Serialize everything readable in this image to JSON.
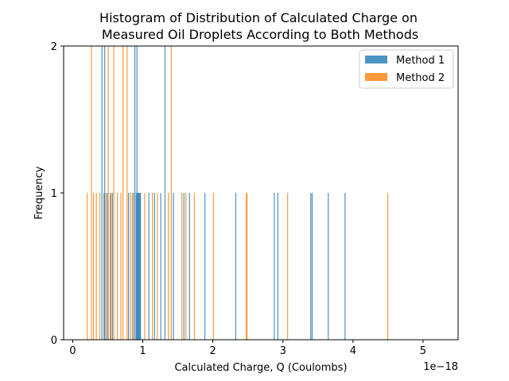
{
  "chart_data": {
    "type": "histogram",
    "title_lines": [
      "Histogram of Distribution of Calculated Charge on",
      "Measured Oil Droplets According to Both Methods"
    ],
    "xlabel": "Calculated Charge, Q (Coulombs)",
    "ylabel": "Frequency",
    "x_offset_text": "1e−18",
    "x_scale": 1e-18,
    "xlim": [
      -0.13,
      5.5
    ],
    "ylim": [
      0,
      2
    ],
    "xticks": [
      0,
      1,
      2,
      3,
      4,
      5
    ],
    "xtick_labels": [
      "0",
      "1",
      "2",
      "3",
      "4",
      "5"
    ],
    "yticks": [
      0,
      1,
      2
    ],
    "ytick_labels": [
      "0",
      "1",
      "2"
    ],
    "bin_width": 0.012,
    "grid": false,
    "legend_position": "top-right",
    "series": [
      {
        "name": "Method 1",
        "color": "#1f77b4",
        "opacity": 0.8,
        "bars": [
          {
            "x": 0.41,
            "count": 2
          },
          {
            "x": 0.45,
            "count": 2
          },
          {
            "x": 0.88,
            "count": 2
          },
          {
            "x": 0.91,
            "count": 2
          },
          {
            "x": 1.31,
            "count": 2
          },
          {
            "x": 0.44,
            "count": 1
          },
          {
            "x": 0.49,
            "count": 1
          },
          {
            "x": 0.53,
            "count": 1
          },
          {
            "x": 0.56,
            "count": 1
          },
          {
            "x": 0.79,
            "count": 1
          },
          {
            "x": 0.85,
            "count": 1
          },
          {
            "x": 0.9,
            "count": 1
          },
          {
            "x": 0.92,
            "count": 1
          },
          {
            "x": 0.93,
            "count": 1
          },
          {
            "x": 0.94,
            "count": 1
          },
          {
            "x": 0.95,
            "count": 1
          },
          {
            "x": 0.96,
            "count": 1
          },
          {
            "x": 1.08,
            "count": 1
          },
          {
            "x": 1.16,
            "count": 1
          },
          {
            "x": 1.25,
            "count": 1
          },
          {
            "x": 1.43,
            "count": 1
          },
          {
            "x": 1.58,
            "count": 1
          },
          {
            "x": 1.66,
            "count": 1
          },
          {
            "x": 1.88,
            "count": 1
          },
          {
            "x": 2.32,
            "count": 1
          },
          {
            "x": 2.87,
            "count": 1
          },
          {
            "x": 2.92,
            "count": 1
          },
          {
            "x": 3.39,
            "count": 1
          },
          {
            "x": 3.41,
            "count": 1
          },
          {
            "x": 3.64,
            "count": 1
          },
          {
            "x": 3.88,
            "count": 1
          }
        ]
      },
      {
        "name": "Method 2",
        "color": "#ff7f0e",
        "opacity": 0.8,
        "bars": [
          {
            "x": 0.26,
            "count": 2
          },
          {
            "x": 0.5,
            "count": 2
          },
          {
            "x": 0.58,
            "count": 2
          },
          {
            "x": 0.71,
            "count": 2
          },
          {
            "x": 0.77,
            "count": 2
          },
          {
            "x": 1.4,
            "count": 2
          },
          {
            "x": 0.2,
            "count": 1
          },
          {
            "x": 0.29,
            "count": 1
          },
          {
            "x": 0.33,
            "count": 1
          },
          {
            "x": 0.38,
            "count": 1
          },
          {
            "x": 0.47,
            "count": 1
          },
          {
            "x": 0.54,
            "count": 1
          },
          {
            "x": 0.63,
            "count": 1
          },
          {
            "x": 0.68,
            "count": 1
          },
          {
            "x": 0.82,
            "count": 1
          },
          {
            "x": 0.86,
            "count": 1
          },
          {
            "x": 1.02,
            "count": 1
          },
          {
            "x": 1.13,
            "count": 1
          },
          {
            "x": 1.2,
            "count": 1
          },
          {
            "x": 1.36,
            "count": 1
          },
          {
            "x": 1.55,
            "count": 1
          },
          {
            "x": 1.61,
            "count": 1
          },
          {
            "x": 1.73,
            "count": 1
          },
          {
            "x": 2.0,
            "count": 1
          },
          {
            "x": 2.47,
            "count": 1
          },
          {
            "x": 2.48,
            "count": 1
          },
          {
            "x": 3.06,
            "count": 1
          },
          {
            "x": 4.49,
            "count": 1
          }
        ]
      }
    ]
  }
}
